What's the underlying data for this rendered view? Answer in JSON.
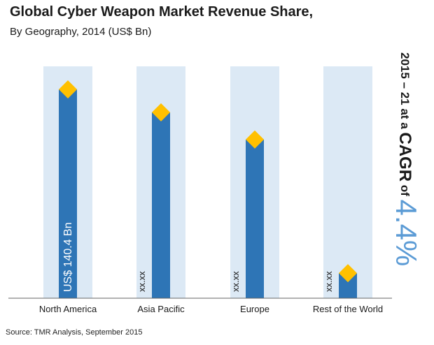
{
  "chart_data": {
    "type": "bar",
    "title": "Global Cyber Weapon Market Revenue Share,",
    "subtitle": "By Geography, 2014 (US$ Bn)",
    "categories": [
      "North America",
      "Asia Pacific",
      "Europe",
      "Rest of the World"
    ],
    "values": [
      100,
      89,
      76,
      12
    ],
    "ylim": [
      0,
      106
    ],
    "bar_labels": [
      "US$ 140.4 Bn",
      "xx.xx",
      "xx.xx",
      "xx.xx"
    ],
    "xlabel": "",
    "ylabel": "",
    "colors": {
      "bar": "#2e75b6",
      "band": "#dce9f5",
      "marker": "#ffc000",
      "axis": "#666666",
      "accent": "#5b9bd5"
    },
    "annotation": {
      "prefix": "2015 – 21 at a ",
      "mid": "CAGR",
      "of": " of ",
      "value": "4.4%"
    }
  },
  "source": "Source: TMR Analysis, September 2015"
}
